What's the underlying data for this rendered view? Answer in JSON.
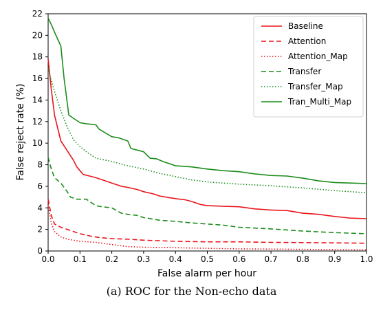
{
  "chart_data": {
    "type": "line",
    "xlabel": "False alarm per hour",
    "ylabel": "False reject rate (%)",
    "xlim": [
      0.0,
      1.0
    ],
    "ylim": [
      0,
      22
    ],
    "x_ticks": [
      "0.0",
      "0.1",
      "0.2",
      "0.3",
      "0.4",
      "0.5",
      "0.6",
      "0.7",
      "0.8",
      "0.9",
      "1.0"
    ],
    "y_ticks": [
      "0",
      "2",
      "4",
      "6",
      "8",
      "10",
      "12",
      "14",
      "16",
      "18",
      "20",
      "22"
    ],
    "grid": false,
    "legend_position": "top-right",
    "series": [
      {
        "name": "Baseline",
        "color": "#e8141b",
        "style": "solid",
        "x": [
          0.0,
          0.01,
          0.02,
          0.04,
          0.06,
          0.08,
          0.09,
          0.11,
          0.13,
          0.15,
          0.17,
          0.2,
          0.23,
          0.25,
          0.28,
          0.3,
          0.33,
          0.35,
          0.38,
          0.4,
          0.43,
          0.45,
          0.48,
          0.5,
          0.55,
          0.6,
          0.65,
          0.7,
          0.75,
          0.8,
          0.85,
          0.9,
          0.95,
          1.0
        ],
        "y": [
          17.8,
          15.0,
          12.6,
          10.2,
          9.3,
          8.4,
          7.8,
          7.1,
          6.95,
          6.8,
          6.6,
          6.3,
          6.0,
          5.9,
          5.7,
          5.5,
          5.3,
          5.1,
          4.95,
          4.85,
          4.75,
          4.6,
          4.3,
          4.2,
          4.15,
          4.1,
          3.9,
          3.8,
          3.75,
          3.5,
          3.4,
          3.2,
          3.05,
          3.0
        ]
      },
      {
        "name": "Attention",
        "color": "#e8141b",
        "style": "dashed",
        "x": [
          0.0,
          0.01,
          0.02,
          0.04,
          0.06,
          0.08,
          0.1,
          0.13,
          0.16,
          0.2,
          0.25,
          0.3,
          0.35,
          0.4,
          0.5,
          0.6,
          0.7,
          0.8,
          0.9,
          1.0
        ],
        "y": [
          4.8,
          3.3,
          2.5,
          2.2,
          2.0,
          1.8,
          1.6,
          1.4,
          1.25,
          1.15,
          1.1,
          1.0,
          0.95,
          0.9,
          0.85,
          0.85,
          0.8,
          0.78,
          0.75,
          0.72
        ]
      },
      {
        "name": "Attention_Map",
        "color": "#e8141b",
        "style": "dotted",
        "x": [
          0.0,
          0.01,
          0.02,
          0.04,
          0.06,
          0.08,
          0.1,
          0.15,
          0.2,
          0.25,
          0.3,
          0.4,
          0.5,
          0.6,
          0.7,
          0.8,
          0.9,
          1.0
        ],
        "y": [
          4.3,
          2.6,
          1.8,
          1.3,
          1.1,
          1.0,
          0.9,
          0.8,
          0.6,
          0.4,
          0.35,
          0.3,
          0.25,
          0.2,
          0.18,
          0.15,
          0.12,
          0.1
        ]
      },
      {
        "name": "Transfer",
        "color": "#1a8c1a",
        "style": "dashed",
        "x": [
          0.0,
          0.01,
          0.02,
          0.04,
          0.06,
          0.07,
          0.09,
          0.12,
          0.15,
          0.17,
          0.2,
          0.23,
          0.25,
          0.28,
          0.3,
          0.33,
          0.35,
          0.4,
          0.45,
          0.5,
          0.55,
          0.6,
          0.7,
          0.8,
          0.9,
          1.0
        ],
        "y": [
          8.7,
          7.6,
          6.8,
          6.3,
          5.5,
          5.0,
          4.8,
          4.8,
          4.2,
          4.1,
          4.0,
          3.5,
          3.4,
          3.3,
          3.1,
          2.95,
          2.85,
          2.75,
          2.6,
          2.5,
          2.4,
          2.2,
          2.05,
          1.85,
          1.7,
          1.6
        ]
      },
      {
        "name": "Transfer_Map",
        "color": "#1a8c1a",
        "style": "dotted",
        "x": [
          0.0,
          0.01,
          0.02,
          0.04,
          0.06,
          0.08,
          0.1,
          0.12,
          0.15,
          0.2,
          0.25,
          0.3,
          0.35,
          0.4,
          0.45,
          0.5,
          0.55,
          0.6,
          0.7,
          0.8,
          0.9,
          1.0
        ],
        "y": [
          17.0,
          15.8,
          14.8,
          13.0,
          11.5,
          10.3,
          9.7,
          9.2,
          8.6,
          8.3,
          7.9,
          7.6,
          7.2,
          6.9,
          6.6,
          6.4,
          6.3,
          6.2,
          6.05,
          5.85,
          5.6,
          5.4
        ]
      },
      {
        "name": "Tran_Multi_Map",
        "color": "#1a8c1a",
        "style": "solid",
        "x": [
          0.0,
          0.01,
          0.02,
          0.04,
          0.05,
          0.065,
          0.08,
          0.1,
          0.12,
          0.15,
          0.16,
          0.2,
          0.22,
          0.25,
          0.26,
          0.3,
          0.32,
          0.34,
          0.36,
          0.4,
          0.45,
          0.5,
          0.55,
          0.6,
          0.65,
          0.7,
          0.75,
          0.8,
          0.85,
          0.9,
          0.95,
          1.0
        ],
        "y": [
          21.6,
          21.0,
          20.3,
          19.0,
          16.0,
          12.6,
          12.3,
          11.9,
          11.8,
          11.7,
          11.3,
          10.6,
          10.5,
          10.2,
          9.5,
          9.2,
          8.6,
          8.55,
          8.3,
          7.9,
          7.8,
          7.6,
          7.45,
          7.35,
          7.15,
          7.0,
          6.95,
          6.75,
          6.5,
          6.35,
          6.3,
          6.25
        ]
      }
    ]
  },
  "caption": "(a) ROC for the Non-echo data"
}
